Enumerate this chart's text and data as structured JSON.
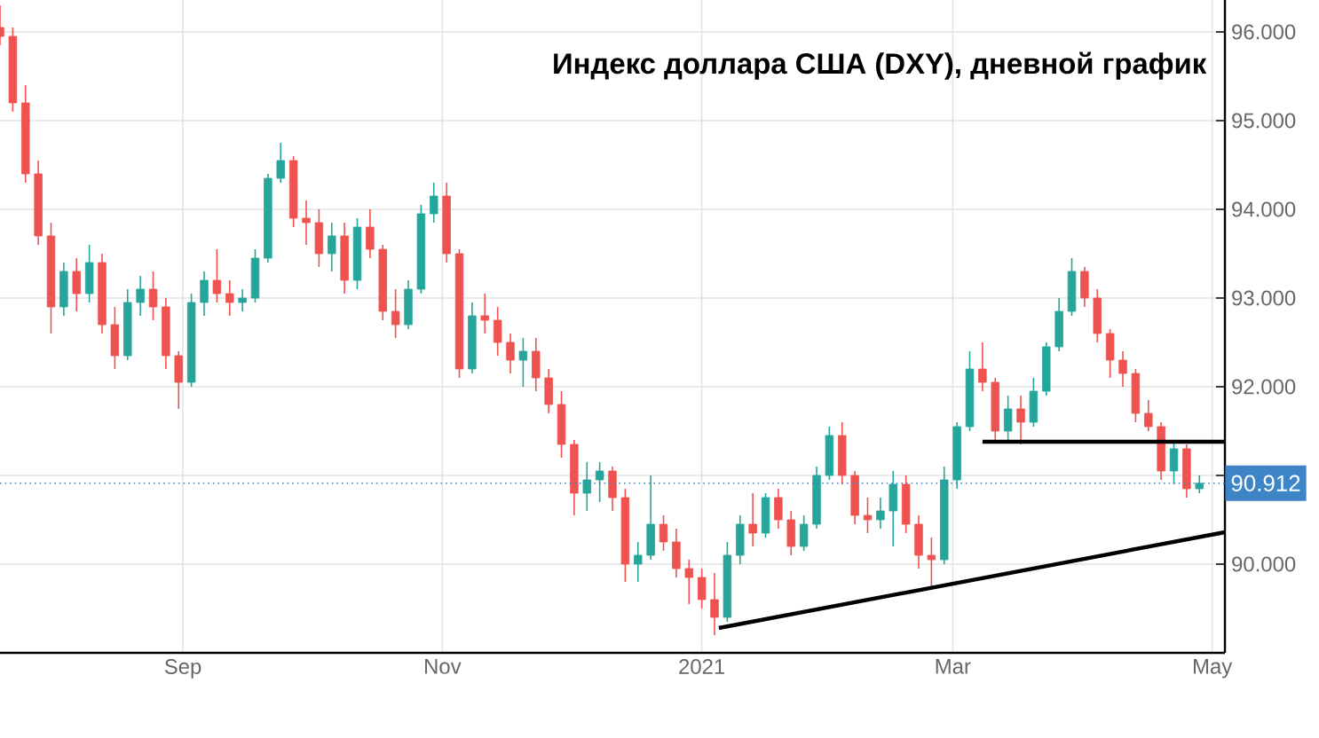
{
  "chart_data": {
    "type": "candlestick",
    "title": "Индекс доллара США (DXY), дневной график",
    "x": [
      "2020-07-20",
      "2020-07-23",
      "2020-07-26",
      "2020-07-29",
      "2020-08-01",
      "2020-08-04",
      "2020-08-07",
      "2020-08-10",
      "2020-08-13",
      "2020-08-16",
      "2020-08-19",
      "2020-08-22",
      "2020-08-25",
      "2020-08-28",
      "2020-08-31",
      "2020-09-03",
      "2020-09-06",
      "2020-09-09",
      "2020-09-12",
      "2020-09-15",
      "2020-09-18",
      "2020-09-21",
      "2020-09-24",
      "2020-09-27",
      "2020-09-30",
      "2020-10-03",
      "2020-10-06",
      "2020-10-09",
      "2020-10-12",
      "2020-10-15",
      "2020-10-18",
      "2020-10-21",
      "2020-10-24",
      "2020-10-27",
      "2020-10-30",
      "2020-11-02",
      "2020-11-05",
      "2020-11-08",
      "2020-11-11",
      "2020-11-14",
      "2020-11-17",
      "2020-11-20",
      "2020-11-23",
      "2020-11-26",
      "2020-11-29",
      "2020-12-02",
      "2020-12-05",
      "2020-12-08",
      "2020-12-11",
      "2020-12-14",
      "2020-12-17",
      "2020-12-20",
      "2020-12-23",
      "2020-12-26",
      "2020-12-29",
      "2021-01-01",
      "2021-01-04",
      "2021-01-07",
      "2021-01-10",
      "2021-01-13",
      "2021-01-16",
      "2021-01-19",
      "2021-01-22",
      "2021-01-25",
      "2021-01-28",
      "2021-01-31",
      "2021-02-03",
      "2021-02-06",
      "2021-02-09",
      "2021-02-12",
      "2021-02-15",
      "2021-02-18",
      "2021-02-21",
      "2021-02-24",
      "2021-02-27",
      "2021-03-02",
      "2021-03-05",
      "2021-03-08",
      "2021-03-11",
      "2021-03-14",
      "2021-03-17",
      "2021-03-20",
      "2021-03-23",
      "2021-03-26",
      "2021-03-29",
      "2021-04-01",
      "2021-04-04",
      "2021-04-07",
      "2021-04-10",
      "2021-04-13",
      "2021-04-16",
      "2021-04-19",
      "2021-04-22",
      "2021-04-25",
      "2021-04-28"
    ],
    "ohlc": [
      [
        96.05,
        96.3,
        95.85,
        95.95
      ],
      [
        95.95,
        96.05,
        95.1,
        95.2
      ],
      [
        95.2,
        95.4,
        94.3,
        94.4
      ],
      [
        94.4,
        94.55,
        93.6,
        93.7
      ],
      [
        93.7,
        93.85,
        92.6,
        92.9
      ],
      [
        92.9,
        93.4,
        92.8,
        93.3
      ],
      [
        93.3,
        93.45,
        92.85,
        93.05
      ],
      [
        93.05,
        93.6,
        92.95,
        93.4
      ],
      [
        93.4,
        93.5,
        92.6,
        92.7
      ],
      [
        92.7,
        92.9,
        92.2,
        92.35
      ],
      [
        92.35,
        93.1,
        92.3,
        92.95
      ],
      [
        92.95,
        93.25,
        92.8,
        93.1
      ],
      [
        93.1,
        93.3,
        92.75,
        92.9
      ],
      [
        92.9,
        93.0,
        92.2,
        92.35
      ],
      [
        92.35,
        92.4,
        91.75,
        92.05
      ],
      [
        92.05,
        93.05,
        92.0,
        92.95
      ],
      [
        92.95,
        93.3,
        92.8,
        93.2
      ],
      [
        93.2,
        93.55,
        92.95,
        93.05
      ],
      [
        93.05,
        93.2,
        92.8,
        92.95
      ],
      [
        92.95,
        93.1,
        92.85,
        93.0
      ],
      [
        93.0,
        93.55,
        92.95,
        93.45
      ],
      [
        93.45,
        94.4,
        93.4,
        94.35
      ],
      [
        94.35,
        94.75,
        94.3,
        94.55
      ],
      [
        94.55,
        94.6,
        93.8,
        93.9
      ],
      [
        93.9,
        94.1,
        93.6,
        93.85
      ],
      [
        93.85,
        94.0,
        93.35,
        93.5
      ],
      [
        93.5,
        93.85,
        93.3,
        93.7
      ],
      [
        93.7,
        93.85,
        93.05,
        93.2
      ],
      [
        93.2,
        93.9,
        93.1,
        93.8
      ],
      [
        93.8,
        94.0,
        93.45,
        93.55
      ],
      [
        93.55,
        93.6,
        92.75,
        92.85
      ],
      [
        92.85,
        93.1,
        92.55,
        92.7
      ],
      [
        92.7,
        93.2,
        92.65,
        93.1
      ],
      [
        93.1,
        94.05,
        93.05,
        93.95
      ],
      [
        93.95,
        94.3,
        93.85,
        94.15
      ],
      [
        94.15,
        94.3,
        93.4,
        93.5
      ],
      [
        93.5,
        93.55,
        92.1,
        92.2
      ],
      [
        92.2,
        92.95,
        92.15,
        92.8
      ],
      [
        92.8,
        93.05,
        92.6,
        92.75
      ],
      [
        92.75,
        92.9,
        92.35,
        92.5
      ],
      [
        92.5,
        92.6,
        92.15,
        92.3
      ],
      [
        92.3,
        92.55,
        92.0,
        92.4
      ],
      [
        92.4,
        92.55,
        91.95,
        92.1
      ],
      [
        92.1,
        92.2,
        91.7,
        91.8
      ],
      [
        91.8,
        91.95,
        91.2,
        91.35
      ],
      [
        91.35,
        91.4,
        90.55,
        90.8
      ],
      [
        90.8,
        91.15,
        90.6,
        90.95
      ],
      [
        90.95,
        91.15,
        90.7,
        91.05
      ],
      [
        91.05,
        91.1,
        90.6,
        90.75
      ],
      [
        90.75,
        90.85,
        89.8,
        90.0
      ],
      [
        90.0,
        90.25,
        89.8,
        90.1
      ],
      [
        90.1,
        91.0,
        90.05,
        90.45
      ],
      [
        90.45,
        90.55,
        90.15,
        90.25
      ],
      [
        90.25,
        90.4,
        89.85,
        89.95
      ],
      [
        89.95,
        90.05,
        89.55,
        89.85
      ],
      [
        89.85,
        89.95,
        89.5,
        89.6
      ],
      [
        89.6,
        89.9,
        89.2,
        89.4
      ],
      [
        89.4,
        90.25,
        89.35,
        90.1
      ],
      [
        90.1,
        90.55,
        90.0,
        90.45
      ],
      [
        90.45,
        90.8,
        90.2,
        90.35
      ],
      [
        90.35,
        90.8,
        90.3,
        90.75
      ],
      [
        90.75,
        90.85,
        90.4,
        90.5
      ],
      [
        90.5,
        90.6,
        90.1,
        90.2
      ],
      [
        90.2,
        90.55,
        90.15,
        90.45
      ],
      [
        90.45,
        91.1,
        90.4,
        91.0
      ],
      [
        91.0,
        91.55,
        90.95,
        91.45
      ],
      [
        91.45,
        91.6,
        90.9,
        91.0
      ],
      [
        91.0,
        91.05,
        90.45,
        90.55
      ],
      [
        90.55,
        90.75,
        90.35,
        90.5
      ],
      [
        90.5,
        90.75,
        90.4,
        90.6
      ],
      [
        90.6,
        91.05,
        90.2,
        90.9
      ],
      [
        90.9,
        91.0,
        90.35,
        90.45
      ],
      [
        90.45,
        90.55,
        89.95,
        90.1
      ],
      [
        90.1,
        90.3,
        89.75,
        90.05
      ],
      [
        90.05,
        91.1,
        90.0,
        90.95
      ],
      [
        90.95,
        91.6,
        90.85,
        91.55
      ],
      [
        91.55,
        92.4,
        91.5,
        92.2
      ],
      [
        92.2,
        92.5,
        91.95,
        92.05
      ],
      [
        92.05,
        92.1,
        91.4,
        91.5
      ],
      [
        91.5,
        91.9,
        91.4,
        91.75
      ],
      [
        91.75,
        91.9,
        91.35,
        91.6
      ],
      [
        91.6,
        92.1,
        91.55,
        91.95
      ],
      [
        91.95,
        92.5,
        91.9,
        92.45
      ],
      [
        92.45,
        93.0,
        92.4,
        92.85
      ],
      [
        92.85,
        93.45,
        92.8,
        93.3
      ],
      [
        93.3,
        93.35,
        92.9,
        93.0
      ],
      [
        93.0,
        93.1,
        92.5,
        92.6
      ],
      [
        92.6,
        92.65,
        92.1,
        92.3
      ],
      [
        92.3,
        92.4,
        92.0,
        92.15
      ],
      [
        92.15,
        92.2,
        91.6,
        91.7
      ],
      [
        91.7,
        91.85,
        91.5,
        91.55
      ],
      [
        91.55,
        91.6,
        90.95,
        91.05
      ],
      [
        91.05,
        91.4,
        90.9,
        91.3
      ],
      [
        91.3,
        91.35,
        90.75,
        90.85
      ],
      [
        90.85,
        91.0,
        90.8,
        90.912
      ]
    ],
    "colors": [
      "#ef5350",
      "#ef5350",
      "#ef5350",
      "#ef5350",
      "#ef5350",
      "#26a69a",
      "#ef5350",
      "#26a69a",
      "#ef5350",
      "#ef5350",
      "#26a69a",
      "#26a69a",
      "#ef5350",
      "#ef5350",
      "#ef5350",
      "#26a69a",
      "#26a69a",
      "#ef5350",
      "#ef5350",
      "#26a69a",
      "#26a69a",
      "#26a69a",
      "#26a69a",
      "#ef5350",
      "#ef5350",
      "#ef5350",
      "#26a69a",
      "#ef5350",
      "#26a69a",
      "#ef5350",
      "#ef5350",
      "#ef5350",
      "#26a69a",
      "#26a69a",
      "#26a69a",
      "#ef5350",
      "#ef5350",
      "#26a69a",
      "#ef5350",
      "#ef5350",
      "#ef5350",
      "#26a69a",
      "#ef5350",
      "#ef5350",
      "#ef5350",
      "#ef5350",
      "#26a69a",
      "#26a69a",
      "#ef5350",
      "#ef5350",
      "#26a69a",
      "#26a69a",
      "#ef5350",
      "#ef5350",
      "#ef5350",
      "#ef5350",
      "#ef5350",
      "#26a69a",
      "#26a69a",
      "#ef5350",
      "#26a69a",
      "#ef5350",
      "#ef5350",
      "#26a69a",
      "#26a69a",
      "#26a69a",
      "#ef5350",
      "#ef5350",
      "#ef5350",
      "#26a69a",
      "#26a69a",
      "#ef5350",
      "#ef5350",
      "#ef5350",
      "#26a69a",
      "#26a69a",
      "#26a69a",
      "#ef5350",
      "#ef5350",
      "#26a69a",
      "#ef5350",
      "#26a69a",
      "#26a69a",
      "#26a69a",
      "#26a69a",
      "#ef5350",
      "#ef5350",
      "#ef5350",
      "#ef5350",
      "#ef5350",
      "#ef5350",
      "#ef5350",
      "#26a69a",
      "#ef5350",
      "#26a69a"
    ],
    "series": [
      {
        "type": "line",
        "color": "#000000",
        "x": [
          "2021-03-08",
          "2021-05-04"
        ],
        "values": [
          91.38,
          91.38
        ]
      },
      {
        "type": "line",
        "color": "#000000",
        "x": [
          "2021-01-05",
          "2021-05-04"
        ],
        "values": [
          89.28,
          90.36
        ]
      }
    ],
    "ref_lines": [
      {
        "axis": "y",
        "value": 90.912,
        "label": "90.912",
        "color": "#3d85c6",
        "line_style": "dotted"
      }
    ],
    "xlim": [
      "2020-07-20",
      "2021-05-04"
    ],
    "xticks": [
      {
        "value": "2020-09-01",
        "label": "Sep"
      },
      {
        "value": "2020-11-01",
        "label": "Nov"
      },
      {
        "value": "2021-01-01",
        "label": "2021"
      },
      {
        "value": "2021-03-01",
        "label": "Mar"
      },
      {
        "value": "2021-05-01",
        "label": "May"
      }
    ],
    "ylim": [
      89.0,
      96.36
    ],
    "yticks": [
      {
        "value": 90,
        "label": "90.000"
      },
      {
        "value": 91,
        "label": null
      },
      {
        "value": 92,
        "label": "92.000"
      },
      {
        "value": 93,
        "label": "93.000"
      },
      {
        "value": 94,
        "label": "94.000"
      },
      {
        "value": 95,
        "label": "95.000"
      },
      {
        "value": 96,
        "label": "96.000"
      }
    ],
    "grid": true
  }
}
